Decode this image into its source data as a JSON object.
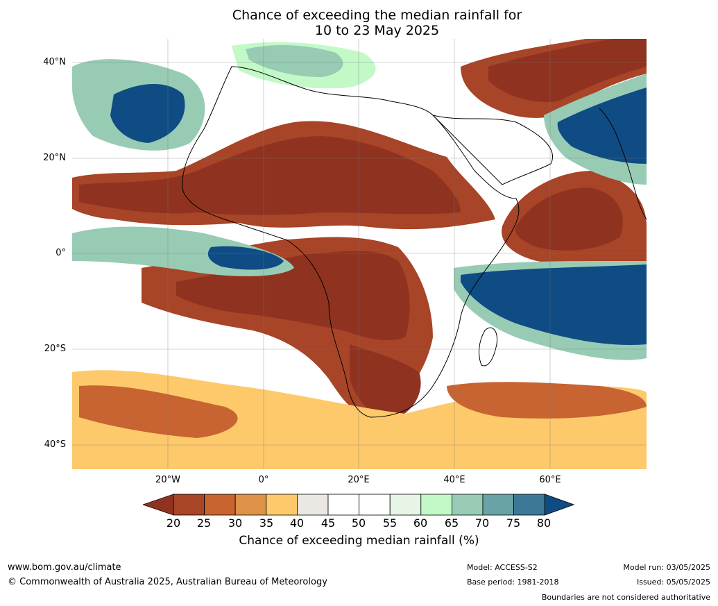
{
  "title": {
    "line1": "Chance of exceeding the median rainfall for",
    "line2": "10 to 23 May 2025"
  },
  "axes": {
    "lat_labels": [
      "40°N",
      "20°N",
      "0°",
      "20°S",
      "40°S"
    ],
    "lon_labels": [
      "20°W",
      "0°",
      "20°E",
      "40°E",
      "60°E"
    ]
  },
  "legend": {
    "title": "Chance of exceeding median rainfall (%)",
    "ticks": [
      "20",
      "25",
      "30",
      "35",
      "40",
      "45",
      "50",
      "55",
      "60",
      "65",
      "70",
      "75",
      "80"
    ],
    "colors": [
      "#8f3320",
      "#a84427",
      "#c76432",
      "#de9248",
      "#fdc96b",
      "#ebe8e3",
      "#ffffff",
      "#ffffff",
      "#e6f5e6",
      "#c3f8c7",
      "#98cbb4",
      "#6aa3a5",
      "#3e7896",
      "#0f4c84"
    ]
  },
  "map_colors": {
    "very_dry": "#8f3320",
    "dry": "#a84427",
    "moderately_dry": "#c76432",
    "slightly_dry": "#de9248",
    "near_dry": "#fdc96b",
    "neutral": "#ebe8e3",
    "slightly_wet": "#c3f8c7",
    "wet": "#98cbb4",
    "very_wet": "#3e7896",
    "extremely_wet": "#0f4c84",
    "coastline": "#000000",
    "borders": "#808080"
  },
  "footer": {
    "website": "www.bom.gov.au/climate",
    "copyright": "© Commonwealth of Australia 2025, Australian Bureau of Meteorology",
    "model": "Model: ACCESS-S2",
    "base_period": "Base period: 1981-2018",
    "model_run": "Model run: 03/05/2025",
    "issued": "Issued: 05/05/2025",
    "disclaimer": "Boundaries are not considered authoritative"
  }
}
